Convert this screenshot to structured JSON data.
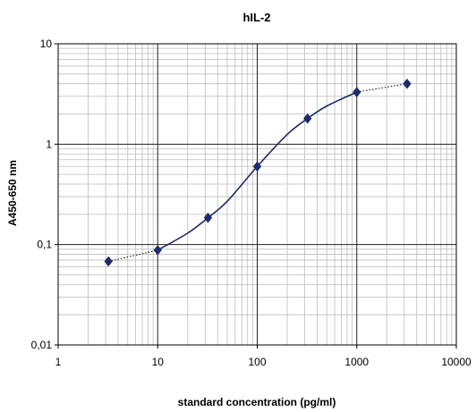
{
  "chart_data": {
    "type": "scatter",
    "title": "hIL-2",
    "xlabel": "standard concentration (pg/ml)",
    "ylabel": "A450-650 nm",
    "xscale": "log",
    "yscale": "log",
    "xlim": [
      1,
      10000
    ],
    "ylim": [
      0.01,
      10
    ],
    "x_ticks": [
      1,
      10,
      100,
      1000,
      10000
    ],
    "x_tick_labels": [
      "1",
      "10",
      "100",
      "1000",
      "10000"
    ],
    "y_ticks": [
      0.01,
      0.1,
      1,
      10
    ],
    "y_tick_labels": [
      "0,01",
      "0,1",
      "1",
      "10"
    ],
    "grid": true,
    "legend": "none",
    "series": [
      {
        "x": [
          3.2,
          10,
          32,
          100,
          320,
          1000,
          3200
        ],
        "y": [
          0.068,
          0.088,
          0.185,
          0.6,
          1.8,
          3.3,
          4.0
        ],
        "color": "#1f2a6b",
        "marker": "diamond"
      }
    ],
    "fit_curve": {
      "x": [
        3.2,
        10,
        20,
        32,
        50,
        100,
        200,
        320,
        500,
        1000,
        3200
      ],
      "y": [
        0.068,
        0.088,
        0.13,
        0.185,
        0.27,
        0.6,
        1.25,
        1.8,
        2.4,
        3.3,
        4.0
      ],
      "solid_range": [
        10,
        1000
      ],
      "color": "#1f2a6b"
    }
  }
}
